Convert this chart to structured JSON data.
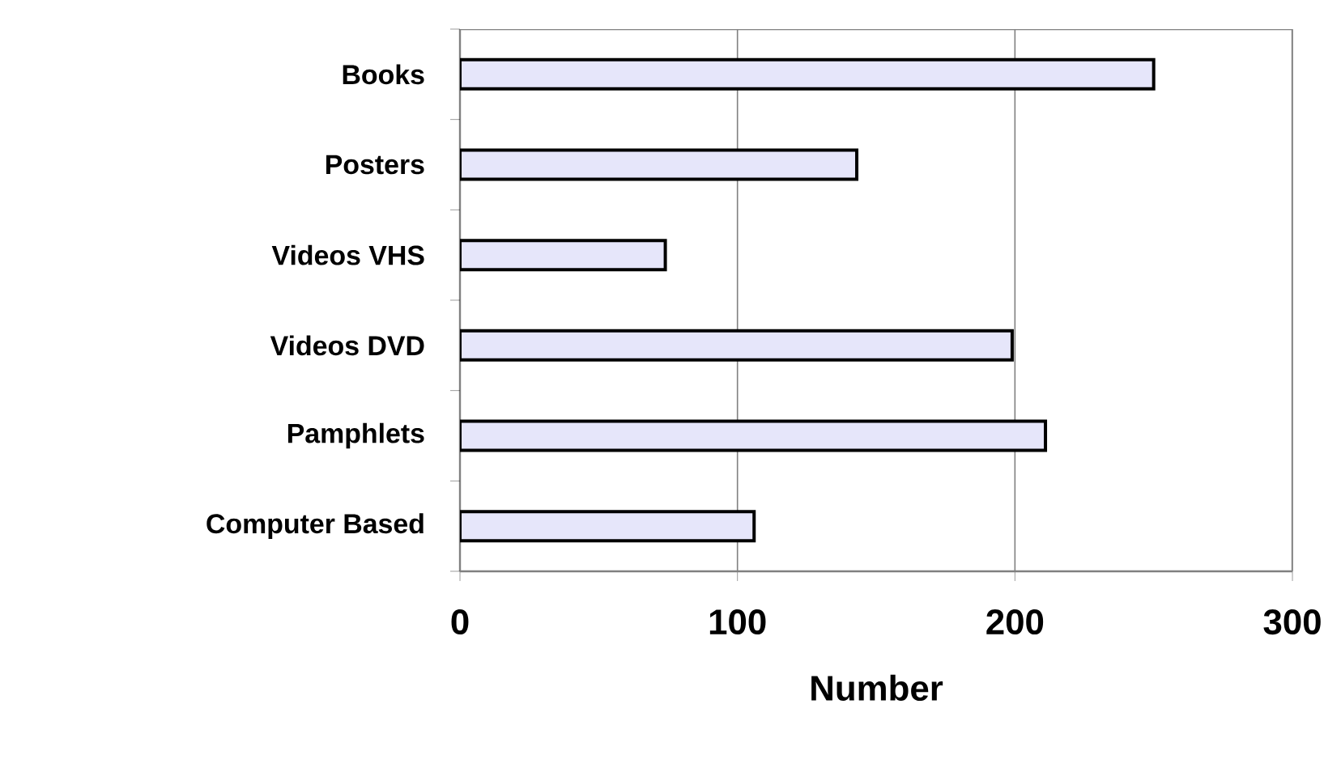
{
  "chart_data": {
    "type": "bar",
    "orientation": "horizontal",
    "xlabel": "Number",
    "categories": [
      "Books",
      "Posters",
      "Videos VHS",
      "Videos DVD",
      "Pamphlets",
      "Computer Based"
    ],
    "values": [
      250,
      143,
      74,
      199,
      211,
      106
    ],
    "color": "#e6e6fa",
    "xlim": [
      0,
      300
    ],
    "xticks": [
      0,
      100,
      200,
      300
    ],
    "grid": "x"
  }
}
